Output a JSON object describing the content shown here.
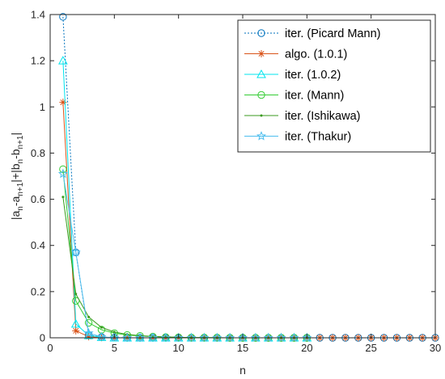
{
  "chart_data": {
    "type": "line",
    "xlabel": "n",
    "ylabel_parts": [
      {
        "t": "|a",
        "sub": false
      },
      {
        "t": "n",
        "sub": true
      },
      {
        "t": "-a",
        "sub": false
      },
      {
        "t": "n+1",
        "sub": true
      },
      {
        "t": "|+|b",
        "sub": false
      },
      {
        "t": "n",
        "sub": true
      },
      {
        "t": "-b",
        "sub": false
      },
      {
        "t": "n+1",
        "sub": true
      },
      {
        "t": "|",
        "sub": false
      }
    ],
    "xlim": [
      0,
      30
    ],
    "ylim": [
      0,
      1.4
    ],
    "xticks": [
      "0",
      "5",
      "10",
      "15",
      "20",
      "25",
      "30"
    ],
    "yticks": [
      "0",
      "0.2",
      "0.4",
      "0.6",
      "0.8",
      "1",
      "1.2",
      "1.4"
    ],
    "xtick_values": [
      0,
      5,
      10,
      15,
      20,
      25,
      30
    ],
    "ytick_values": [
      0,
      0.2,
      0.4,
      0.6,
      0.8,
      1.0,
      1.2,
      1.4
    ],
    "legend_position": "top-right",
    "series": [
      {
        "name": "iter. (Picard Mann)",
        "color": "#0072BD",
        "marker": "circle",
        "line_style": "dotted",
        "x": [
          1,
          2,
          3,
          4,
          5,
          6,
          7,
          8,
          9,
          10,
          11,
          12,
          13,
          14,
          15,
          16,
          17,
          18,
          19,
          20,
          21,
          22,
          23,
          24,
          25,
          26,
          27,
          28,
          29,
          30
        ],
        "values": [
          1.39,
          0.37,
          0.012,
          0.003,
          0.001,
          0,
          0,
          0,
          0,
          0,
          0,
          0,
          0,
          0,
          0,
          0,
          0,
          0,
          0,
          0,
          0,
          0,
          0,
          0,
          0,
          0,
          0,
          0,
          0,
          0
        ]
      },
      {
        "name": "algo. (1.0.1)",
        "color": "#D95319",
        "marker": "asterisk",
        "line_style": "solid",
        "x": [
          1,
          2,
          3,
          4,
          5,
          6,
          7,
          8,
          9,
          10,
          11,
          12,
          13,
          14,
          15,
          16,
          17,
          18,
          19,
          20,
          21,
          22,
          23,
          24,
          25,
          26,
          27,
          28,
          29,
          30
        ],
        "values": [
          1.02,
          0.03,
          0.005,
          0.001,
          0,
          0,
          0,
          0,
          0,
          0,
          0,
          0,
          0,
          0,
          0,
          0,
          0,
          0,
          0,
          0,
          0,
          0,
          0,
          0,
          0,
          0,
          0,
          0,
          0,
          0
        ]
      },
      {
        "name": "iter. (1.0.2)",
        "color": "#00E5EE",
        "marker": "triangle",
        "line_style": "solid",
        "x": [
          1,
          2,
          3,
          4,
          5,
          6,
          7,
          8,
          9,
          10,
          11,
          12,
          13,
          14,
          15,
          16,
          17,
          18,
          19,
          20
        ],
        "values": [
          1.2,
          0.06,
          0.01,
          0.002,
          0,
          0,
          0,
          0,
          0,
          0,
          0,
          0,
          0,
          0,
          0,
          0,
          0,
          0,
          0,
          0
        ]
      },
      {
        "name": "iter. (Mann)",
        "color": "#33CC33",
        "marker": "circle",
        "line_style": "solid",
        "x": [
          1,
          2,
          3,
          4,
          5,
          6,
          7,
          8,
          9,
          10,
          11,
          12,
          13,
          14,
          15,
          16,
          17,
          18,
          19,
          20
        ],
        "values": [
          0.73,
          0.16,
          0.065,
          0.035,
          0.02,
          0.012,
          0.008,
          0.005,
          0.003,
          0.002,
          0.001,
          0.001,
          0.001,
          0,
          0,
          0,
          0,
          0,
          0,
          0
        ]
      },
      {
        "name": "iter. (Ishikawa)",
        "color": "#3A9A1E",
        "marker": "dot",
        "line_style": "solid",
        "x": [
          1,
          2,
          3,
          4,
          5,
          6,
          7,
          8,
          9,
          10,
          11,
          12,
          13,
          14,
          15,
          16,
          17,
          18,
          19,
          20
        ],
        "values": [
          0.61,
          0.19,
          0.09,
          0.045,
          0.025,
          0.015,
          0.009,
          0.006,
          0.004,
          0.002,
          0.001,
          0.001,
          0,
          0,
          0,
          0,
          0,
          0,
          0,
          0
        ]
      },
      {
        "name": "iter. (Thakur)",
        "color": "#4DBEEE",
        "marker": "star",
        "line_style": "solid",
        "x": [
          1,
          2,
          3,
          4,
          5,
          6,
          7,
          8,
          9,
          10,
          11,
          12,
          13,
          14,
          15,
          16,
          17,
          18,
          19,
          20
        ],
        "values": [
          0.71,
          0.37,
          0.02,
          0.004,
          0.001,
          0,
          0,
          0,
          0,
          0,
          0,
          0,
          0,
          0,
          0,
          0,
          0,
          0,
          0,
          0
        ]
      }
    ]
  }
}
